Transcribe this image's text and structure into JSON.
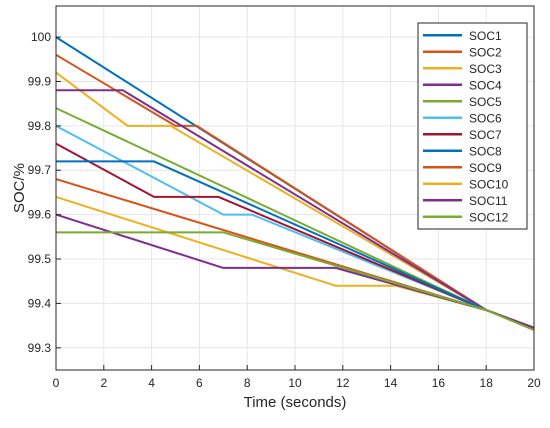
{
  "chart_data": {
    "type": "line",
    "title": "",
    "xlabel": "Time (seconds)",
    "ylabel": "SOC/%",
    "xlim": [
      0,
      20
    ],
    "ylim": [
      99.25,
      100.07
    ],
    "xticks": [
      "0",
      "2",
      "4",
      "6",
      "8",
      "10",
      "12",
      "14",
      "16",
      "18",
      "20"
    ],
    "yticks": [
      "99.3",
      "99.4",
      "99.5",
      "99.6",
      "99.7",
      "99.8",
      "99.9",
      "100"
    ],
    "grid": true,
    "legend_position": "top-right",
    "series": [
      {
        "name": "SOC1",
        "color": "#0072BD",
        "x": [
          0,
          18,
          20
        ],
        "y": [
          100.0,
          99.385,
          99.345
        ]
      },
      {
        "name": "SOC2",
        "color": "#D95319",
        "x": [
          0,
          5.0,
          5.9,
          18,
          20
        ],
        "y": [
          99.96,
          99.8,
          99.8,
          99.385,
          99.345
        ]
      },
      {
        "name": "SOC3",
        "color": "#EDB120",
        "x": [
          0,
          3.0,
          4.8,
          18,
          20
        ],
        "y": [
          99.92,
          99.8,
          99.8,
          99.385,
          99.345
        ]
      },
      {
        "name": "SOC4",
        "color": "#7E2F8E",
        "x": [
          0,
          2.8,
          18,
          20
        ],
        "y": [
          99.88,
          99.88,
          99.385,
          99.345
        ]
      },
      {
        "name": "SOC5",
        "color": "#77AC30",
        "x": [
          0,
          18,
          20
        ],
        "y": [
          99.84,
          99.385,
          99.34
        ]
      },
      {
        "name": "SOC6",
        "color": "#4DBEEE",
        "x": [
          0,
          7.0,
          8.2,
          18,
          20
        ],
        "y": [
          99.8,
          99.6,
          99.6,
          99.385,
          99.345
        ]
      },
      {
        "name": "SOC7",
        "color": "#A2142F",
        "x": [
          0,
          4.1,
          6.8,
          18,
          20
        ],
        "y": [
          99.76,
          99.64,
          99.64,
          99.385,
          99.345
        ]
      },
      {
        "name": "SOC8",
        "color": "#0072BD",
        "x": [
          0,
          4.1,
          18,
          20
        ],
        "y": [
          99.72,
          99.72,
          99.385,
          99.345
        ]
      },
      {
        "name": "SOC9",
        "color": "#D95319",
        "x": [
          0,
          18,
          20
        ],
        "y": [
          99.68,
          99.385,
          99.345
        ]
      },
      {
        "name": "SOC10",
        "color": "#EDB120",
        "x": [
          0,
          11.7,
          14.2,
          18,
          20
        ],
        "y": [
          99.64,
          99.44,
          99.44,
          99.385,
          99.345
        ]
      },
      {
        "name": "SOC11",
        "color": "#7E2F8E",
        "x": [
          0,
          7.0,
          11.7,
          18,
          20
        ],
        "y": [
          99.6,
          99.48,
          99.48,
          99.385,
          99.345
        ]
      },
      {
        "name": "SOC12",
        "color": "#77AC30",
        "x": [
          0,
          7.0,
          18,
          20
        ],
        "y": [
          99.56,
          99.56,
          99.385,
          99.34
        ]
      }
    ]
  }
}
